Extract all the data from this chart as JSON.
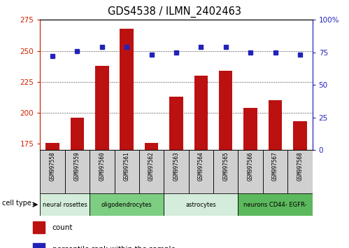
{
  "title": "GDS4538 / ILMN_2402463",
  "samples": [
    "GSM997558",
    "GSM997559",
    "GSM997560",
    "GSM997561",
    "GSM997562",
    "GSM997563",
    "GSM997564",
    "GSM997565",
    "GSM997566",
    "GSM997567",
    "GSM997568"
  ],
  "counts": [
    176,
    196,
    238,
    268,
    176,
    213,
    230,
    234,
    204,
    210,
    193
  ],
  "percentile_ranks": [
    72,
    76,
    79,
    79,
    73,
    75,
    79,
    79,
    75,
    75,
    73
  ],
  "cell_types": [
    {
      "label": "neural rosettes",
      "start": 0,
      "end": 2,
      "color": "#d4edda"
    },
    {
      "label": "oligodendrocytes",
      "start": 2,
      "end": 5,
      "color": "#7dce82"
    },
    {
      "label": "astrocytes",
      "start": 5,
      "end": 8,
      "color": "#d4edda"
    },
    {
      "label": "neurons CD44- EGFR-",
      "start": 8,
      "end": 11,
      "color": "#5cb85c"
    }
  ],
  "ylim_left": [
    170,
    275
  ],
  "ylim_right": [
    0,
    100
  ],
  "yticks_left": [
    175,
    200,
    225,
    250,
    275
  ],
  "yticks_right": [
    0,
    25,
    50,
    75,
    100
  ],
  "ytick_labels_right": [
    "0",
    "25",
    "50",
    "75",
    "100%"
  ],
  "bar_color": "#bb1111",
  "dot_color": "#2222bb",
  "grid_color": "#333333",
  "background_color": "#ffffff",
  "tick_label_color_left": "#cc2200",
  "tick_label_color_right": "#2222bb",
  "legend_count_color": "#bb1111",
  "legend_pct_color": "#2222bb",
  "cell_type_label": "cell type",
  "box_color": "#d0d0d0"
}
